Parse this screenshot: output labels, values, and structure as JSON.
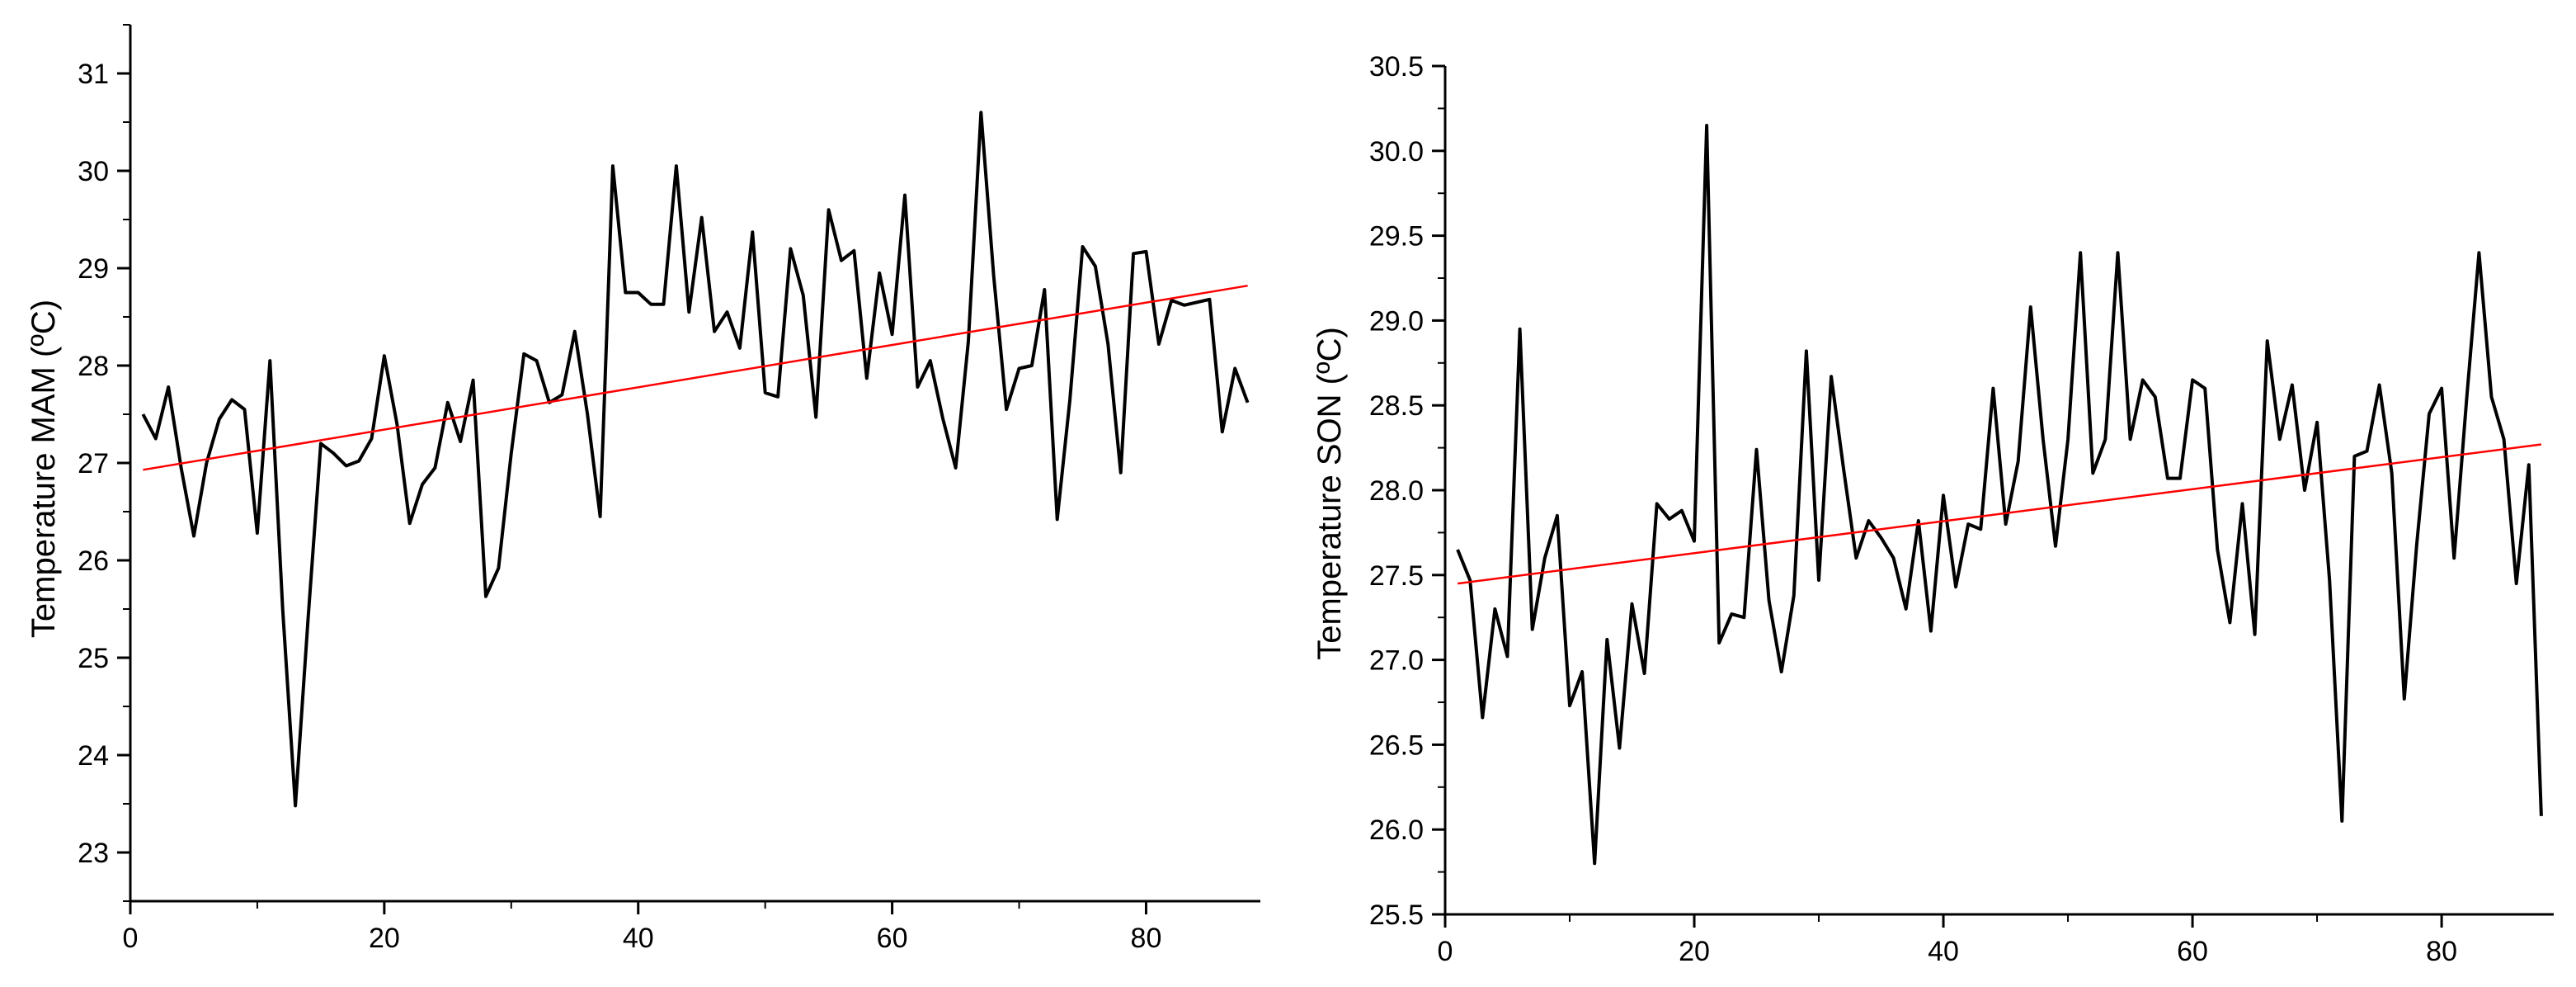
{
  "chart_data": [
    {
      "type": "line",
      "title": "",
      "xlabel": "",
      "ylabel": "Temperature MAM (ºC)",
      "xlim": [
        0,
        89
      ],
      "ylim": [
        22.5,
        31.5
      ],
      "xticks": [
        0,
        20,
        40,
        60,
        80
      ],
      "yticks": [
        23,
        24,
        25,
        26,
        27,
        28,
        29,
        30,
        31
      ],
      "x_tick_labels": [
        "0",
        "20",
        "40",
        "60",
        "80"
      ],
      "y_tick_labels": [
        "23",
        "24",
        "25",
        "26",
        "27",
        "28",
        "29",
        "30",
        "31"
      ],
      "grid": false,
      "series": [
        {
          "color": "#000000",
          "x": [
            1,
            2,
            3,
            4,
            5,
            6,
            7,
            8,
            9,
            10,
            11,
            12,
            13,
            14,
            15,
            16,
            17,
            18,
            19,
            20,
            21,
            22,
            23,
            24,
            25,
            26,
            27,
            28,
            29,
            30,
            31,
            32,
            33,
            34,
            35,
            36,
            37,
            38,
            39,
            40,
            41,
            42,
            43,
            44,
            45,
            46,
            47,
            48,
            49,
            50,
            51,
            52,
            53,
            54,
            55,
            56,
            57,
            58,
            59,
            60,
            61,
            62,
            63,
            64,
            65,
            66,
            67,
            68,
            69,
            70,
            71,
            72,
            73,
            74,
            75,
            76,
            77,
            78,
            79,
            80,
            81,
            82,
            83,
            84,
            85,
            86,
            87,
            88
          ],
          "y": [
            27.5,
            27.25,
            27.78,
            26.95,
            26.25,
            27.0,
            27.45,
            27.65,
            27.55,
            26.28,
            28.05,
            25.5,
            23.48,
            25.4,
            27.2,
            27.1,
            26.97,
            27.02,
            27.25,
            28.1,
            27.4,
            26.38,
            26.78,
            26.95,
            27.62,
            27.22,
            27.85,
            25.63,
            25.92,
            27.1,
            28.12,
            28.05,
            27.62,
            27.7,
            28.35,
            27.5,
            26.45,
            30.05,
            28.75,
            28.75,
            28.63,
            28.63,
            30.05,
            28.55,
            29.52,
            28.35,
            28.55,
            28.18,
            29.37,
            27.72,
            27.68,
            29.2,
            28.72,
            27.47,
            29.6,
            29.08,
            29.18,
            27.87,
            28.95,
            28.32,
            29.75,
            27.78,
            28.05,
            27.45,
            26.95,
            28.25,
            30.6,
            28.92,
            27.55,
            27.97,
            28.0,
            28.78,
            26.42,
            27.65,
            29.22,
            29.02,
            28.22,
            26.9,
            29.15,
            29.17,
            28.22,
            28.67,
            28.62,
            28.65,
            28.68,
            27.32,
            27.97,
            27.62
          ]
        },
        {
          "color": "#ff0000",
          "x": [
            1,
            88
          ],
          "y": [
            26.93,
            28.82
          ]
        }
      ]
    },
    {
      "type": "line",
      "title": "",
      "xlabel": "",
      "ylabel": "Temperature SON (ºC)",
      "xlim": [
        0,
        89
      ],
      "ylim": [
        25.5,
        30.5
      ],
      "xticks": [
        0,
        20,
        40,
        60,
        80
      ],
      "yticks": [
        25.5,
        26.0,
        26.5,
        27.0,
        27.5,
        28.0,
        28.5,
        29.0,
        29.5,
        30.0,
        30.5
      ],
      "x_tick_labels": [
        "0",
        "20",
        "40",
        "60",
        "80"
      ],
      "y_tick_labels": [
        "25.5",
        "26.0",
        "26.5",
        "27.0",
        "27.5",
        "28.0",
        "28.5",
        "29.0",
        "29.5",
        "30.0",
        "30.5"
      ],
      "grid": false,
      "series": [
        {
          "color": "#000000",
          "x": [
            1,
            2,
            3,
            4,
            5,
            6,
            7,
            8,
            9,
            10,
            11,
            12,
            13,
            14,
            15,
            16,
            17,
            18,
            19,
            20,
            21,
            22,
            23,
            24,
            25,
            26,
            27,
            28,
            29,
            30,
            31,
            32,
            33,
            34,
            35,
            36,
            37,
            38,
            39,
            40,
            41,
            42,
            43,
            44,
            45,
            46,
            47,
            48,
            49,
            50,
            51,
            52,
            53,
            54,
            55,
            56,
            57,
            58,
            59,
            60,
            61,
            62,
            63,
            64,
            65,
            66,
            67,
            68,
            69,
            70,
            71,
            72,
            73,
            74,
            75,
            76,
            77,
            78,
            79,
            80,
            81,
            82,
            83,
            84,
            85,
            86,
            87,
            88
          ],
          "y": [
            27.65,
            27.47,
            26.66,
            27.3,
            27.02,
            28.95,
            27.18,
            27.6,
            27.85,
            26.73,
            26.93,
            25.8,
            27.12,
            26.48,
            27.33,
            26.92,
            27.92,
            27.83,
            27.88,
            27.7,
            30.15,
            27.1,
            27.27,
            27.25,
            28.24,
            27.35,
            26.93,
            27.38,
            28.82,
            27.47,
            28.67,
            28.12,
            27.6,
            27.82,
            27.72,
            27.6,
            27.3,
            27.82,
            27.17,
            27.97,
            27.43,
            27.8,
            27.77,
            28.6,
            27.8,
            28.17,
            29.08,
            28.3,
            27.67,
            28.3,
            29.4,
            28.1,
            28.3,
            29.4,
            28.3,
            28.65,
            28.55,
            28.07,
            28.07,
            28.65,
            28.6,
            27.65,
            27.22,
            27.92,
            27.15,
            28.88,
            28.3,
            28.62,
            28.0,
            28.4,
            27.47,
            26.05,
            28.2,
            28.23,
            28.62,
            28.1,
            26.77,
            27.68,
            28.45,
            28.6,
            27.6,
            28.53,
            29.4,
            28.55,
            28.3,
            27.45,
            28.15,
            26.08
          ]
        },
        {
          "color": "#ff0000",
          "x": [
            1,
            88
          ],
          "y": [
            27.45,
            28.27
          ]
        }
      ]
    }
  ]
}
